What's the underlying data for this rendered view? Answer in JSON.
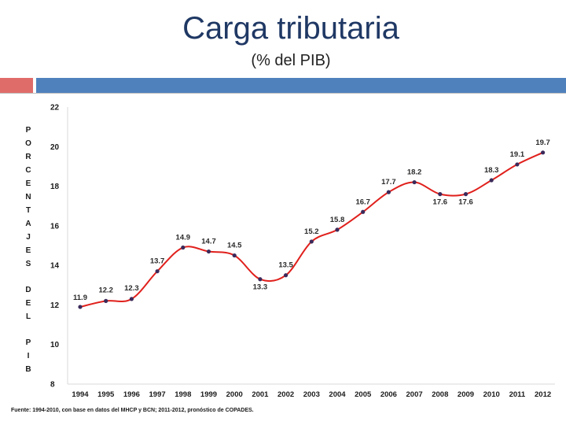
{
  "header": {
    "title": "Carga tributaria",
    "subtitle": "(% del PIB)"
  },
  "colors": {
    "title": "#1f3864",
    "accent_red": "#e06c6a",
    "accent_blue": "#4f81bd",
    "line": "#e0201c",
    "marker": "#3b2a5a"
  },
  "chart_data": {
    "type": "line",
    "title": "Carga tributaria",
    "subtitle": "(% del PIB)",
    "ylabel": "PORCENTAJES DEL PIB",
    "ylabel_words": [
      "PORCENTAJES",
      "DEL",
      "PIB"
    ],
    "xlabel": "",
    "ylim": [
      8,
      22
    ],
    "yticks": [
      8,
      10,
      12,
      14,
      16,
      18,
      20,
      22
    ],
    "categories": [
      "1994",
      "1995",
      "1996",
      "1997",
      "1998",
      "1999",
      "2000",
      "2001",
      "2002",
      "2003",
      "2004",
      "2005",
      "2006",
      "2007",
      "2008",
      "2009",
      "2010",
      "2011",
      "2012"
    ],
    "series": [
      {
        "name": "Carga tributaria",
        "values": [
          11.9,
          12.2,
          12.3,
          13.7,
          14.9,
          14.7,
          14.5,
          13.3,
          13.5,
          15.2,
          15.8,
          16.7,
          17.7,
          18.2,
          17.6,
          17.6,
          18.3,
          19.1,
          19.7
        ],
        "labels": [
          "11.9",
          "12.2",
          "12.3",
          "13.7",
          "14.9",
          "14.7",
          "14.5",
          "13.3",
          "13.5",
          "15.2",
          "15.8",
          "16.7",
          "17.7",
          "18.2",
          "17.6",
          "17.6",
          "18.3",
          "19.1",
          "19.7"
        ]
      }
    ],
    "grid": false,
    "smooth": true
  },
  "footer": {
    "source": "Fuente: 1994-2010, con base en datos del MHCP y BCN; 2011-2012, pronóstico de COPADES."
  }
}
